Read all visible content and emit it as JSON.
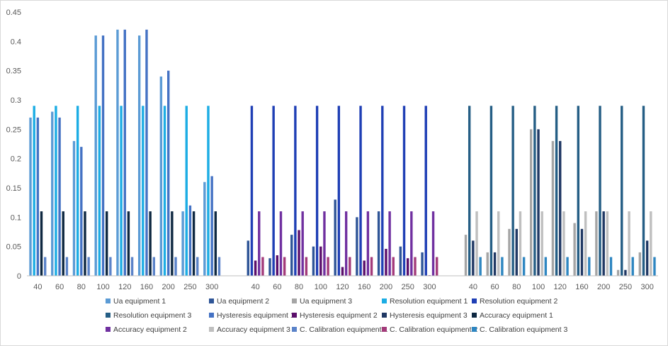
{
  "chart_data": {
    "type": "bar",
    "title": "",
    "xlabel": "",
    "ylabel": "",
    "ylim": [
      0,
      0.45
    ],
    "yticks": [
      0,
      0.05,
      0.1,
      0.15,
      0.2,
      0.25,
      0.3,
      0.35,
      0.4,
      0.45
    ],
    "ytick_labels": [
      "0",
      "0.05",
      "0.1",
      "0.15",
      "0.2",
      "0.25",
      "0.3",
      "0.35",
      "0.4",
      "0.45"
    ],
    "grid": false,
    "legend_position": "bottom",
    "groups": [
      {
        "categories": [
          "40",
          "60",
          "80",
          "100",
          "120",
          "160",
          "200",
          "250",
          "300"
        ],
        "series": [
          {
            "name": "Ua equipment 1",
            "color": "#5B9BD5",
            "values": [
              0.27,
              0.28,
              0.23,
              0.41,
              0.42,
              0.41,
              0.34,
              0.11,
              0.16
            ]
          },
          {
            "name": "Resolution equipment 1",
            "color": "#1CADE4",
            "values": [
              0.29,
              0.29,
              0.29,
              0.29,
              0.29,
              0.29,
              0.29,
              0.29,
              0.29
            ]
          },
          {
            "name": "Hysteresis equipment 1",
            "color": "#4472C4",
            "values": [
              0.27,
              0.27,
              0.22,
              0.41,
              0.42,
              0.42,
              0.35,
              0.12,
              0.17
            ]
          },
          {
            "name": "Accuracy equipment 1",
            "color": "#0E2841",
            "values": [
              0.11,
              0.11,
              0.11,
              0.11,
              0.11,
              0.11,
              0.11,
              0.11,
              0.11
            ]
          },
          {
            "name": "C. Calibration equipment 1",
            "color": "#5B83C9",
            "values": [
              0.032,
              0.032,
              0.032,
              0.032,
              0.032,
              0.032,
              0.032,
              0.032,
              0.032
            ]
          }
        ]
      },
      {
        "categories": [
          "40",
          "60",
          "80",
          "100",
          "120",
          "160",
          "200",
          "250",
          "300"
        ],
        "series": [
          {
            "name": "Ua equipment 2",
            "color": "#2F5597",
            "values": [
              0.06,
              0.03,
              0.07,
              0.05,
              0.13,
              0.1,
              0.11,
              0.05,
              0.04
            ]
          },
          {
            "name": "Resolution equipment 2",
            "color": "#1F3FB5",
            "values": [
              0.29,
              0.29,
              0.29,
              0.29,
              0.29,
              0.29,
              0.29,
              0.29,
              0.29
            ]
          },
          {
            "name": "Hysteresis equipment 2",
            "color": "#5B0F6B",
            "values": [
              0.026,
              0.035,
              0.078,
              0.05,
              0.015,
              0.026,
              0.046,
              0.03,
              0.001
            ]
          },
          {
            "name": "Accuracy equipment 2",
            "color": "#7030A0",
            "values": [
              0.11,
              0.11,
              0.11,
              0.11,
              0.11,
              0.11,
              0.11,
              0.11,
              0.11
            ]
          },
          {
            "name": "C. Calibration equipment 2",
            "color": "#A33B7A",
            "values": [
              0.032,
              0.032,
              0.032,
              0.032,
              0.032,
              0.032,
              0.032,
              0.032,
              0.032
            ]
          }
        ]
      },
      {
        "categories": [
          "40",
          "60",
          "80",
          "100",
          "120",
          "160",
          "200",
          "250",
          "300"
        ],
        "series": [
          {
            "name": "Ua equipment 3",
            "color": "#A5A5A5",
            "values": [
              0.07,
              0.04,
              0.08,
              0.25,
              0.23,
              0.09,
              0.11,
              0.01,
              0.04
            ]
          },
          {
            "name": "Resolution equipment 3",
            "color": "#255E85",
            "values": [
              0.29,
              0.29,
              0.29,
              0.29,
              0.29,
              0.29,
              0.29,
              0.29,
              0.29
            ]
          },
          {
            "name": "Hysteresis equipment 3",
            "color": "#203864",
            "values": [
              0.06,
              0.04,
              0.08,
              0.25,
              0.23,
              0.08,
              0.11,
              0.01,
              0.06
            ]
          },
          {
            "name": "Accuracy equipment 3",
            "color": "#BFBFBF",
            "values": [
              0.11,
              0.11,
              0.11,
              0.11,
              0.11,
              0.11,
              0.11,
              0.11,
              0.11
            ]
          },
          {
            "name": "C. Calibration equipment 3",
            "color": "#2E86C1",
            "values": [
              0.032,
              0.032,
              0.032,
              0.032,
              0.032,
              0.032,
              0.032,
              0.032,
              0.032
            ]
          }
        ]
      }
    ],
    "legend": [
      {
        "name": "Ua equipment 1",
        "color": "#5B9BD5"
      },
      {
        "name": "Ua equipment 2",
        "color": "#2F5597"
      },
      {
        "name": "Ua equipment 3",
        "color": "#A5A5A5"
      },
      {
        "name": "Resolution equipment 1",
        "color": "#1CADE4"
      },
      {
        "name": "Resolution equipment 2",
        "color": "#1F3FB5"
      },
      {
        "name": "Resolution equipment 3",
        "color": "#255E85"
      },
      {
        "name": "Hysteresis equipment 1",
        "color": "#4472C4"
      },
      {
        "name": "Hysteresis equipment 2",
        "color": "#5B0F6B"
      },
      {
        "name": "Hysteresis equipment 3",
        "color": "#203864"
      },
      {
        "name": "Accuracy equipment 1",
        "color": "#0E2841"
      },
      {
        "name": "Accuracy equipment 2",
        "color": "#7030A0"
      },
      {
        "name": "Accuracy equipment 3",
        "color": "#BFBFBF"
      },
      {
        "name": "C. Calibration equipment 1",
        "color": "#5B83C9"
      },
      {
        "name": "C. Calibration equipment 2",
        "color": "#A33B7A"
      },
      {
        "name": "C. Calibration equipment 3",
        "color": "#2E86C1"
      }
    ]
  }
}
